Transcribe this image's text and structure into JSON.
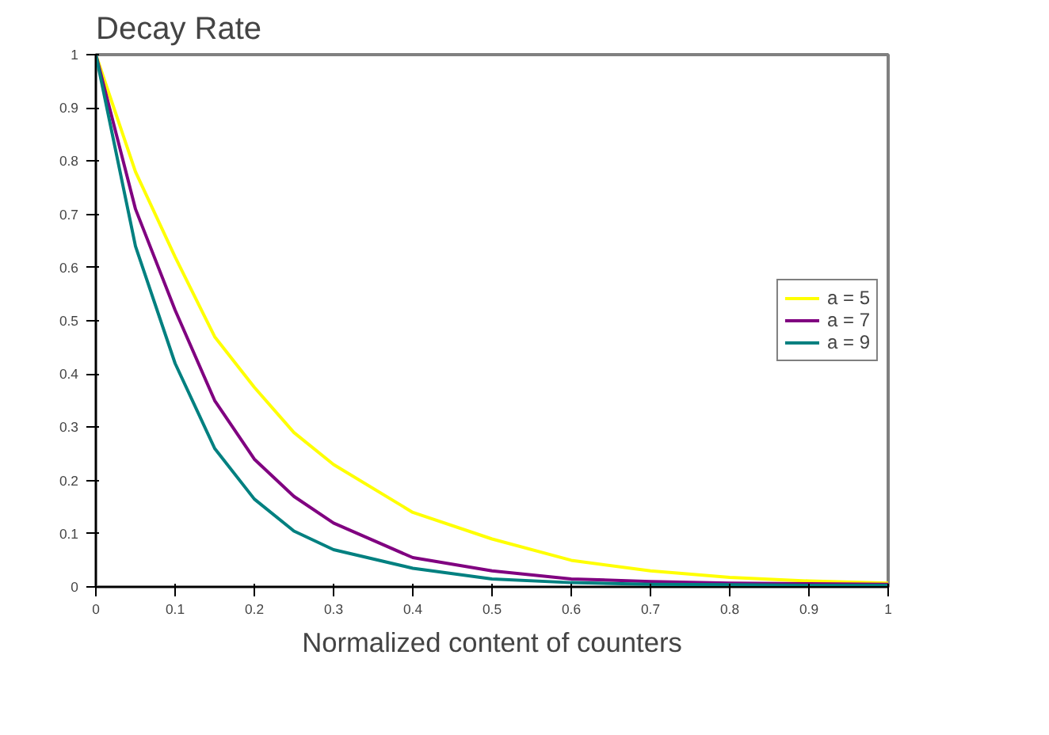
{
  "chart_data": {
    "type": "line",
    "title": "Decay Rate",
    "xlabel": "Normalized content of counters",
    "x": [
      0,
      0.05,
      0.1,
      0.15,
      0.2,
      0.25,
      0.3,
      0.4,
      0.5,
      0.6,
      0.7,
      0.8,
      0.9,
      1
    ],
    "series": [
      {
        "name": "a = 5",
        "color": "#ffff00",
        "values": [
          1,
          0.78,
          0.62,
          0.47,
          0.375,
          0.29,
          0.23,
          0.14,
          0.09,
          0.05,
          0.03,
          0.018,
          0.011,
          0.007
        ]
      },
      {
        "name": "a = 7",
        "color": "#800080",
        "values": [
          1,
          0.71,
          0.52,
          0.35,
          0.24,
          0.17,
          0.12,
          0.055,
          0.03,
          0.015,
          0.01,
          0.007,
          0.006,
          0.005
        ]
      },
      {
        "name": "a = 9",
        "color": "#008080",
        "values": [
          1,
          0.64,
          0.42,
          0.26,
          0.165,
          0.105,
          0.07,
          0.035,
          0.015,
          0.008,
          0.005,
          0.004,
          0.003,
          0.003
        ]
      }
    ],
    "xlim": [
      0,
      1
    ],
    "ylim": [
      0,
      1
    ],
    "xticks": [
      0,
      0.1,
      0.2,
      0.3,
      0.4,
      0.5,
      0.6,
      0.7,
      0.8,
      0.9,
      1
    ],
    "yticks": [
      0,
      0.1,
      0.2,
      0.3,
      0.4,
      0.5,
      0.6,
      0.7,
      0.8,
      0.9,
      1
    ],
    "grid": false,
    "legend": "right",
    "marker": "none",
    "line_style": "solid"
  }
}
